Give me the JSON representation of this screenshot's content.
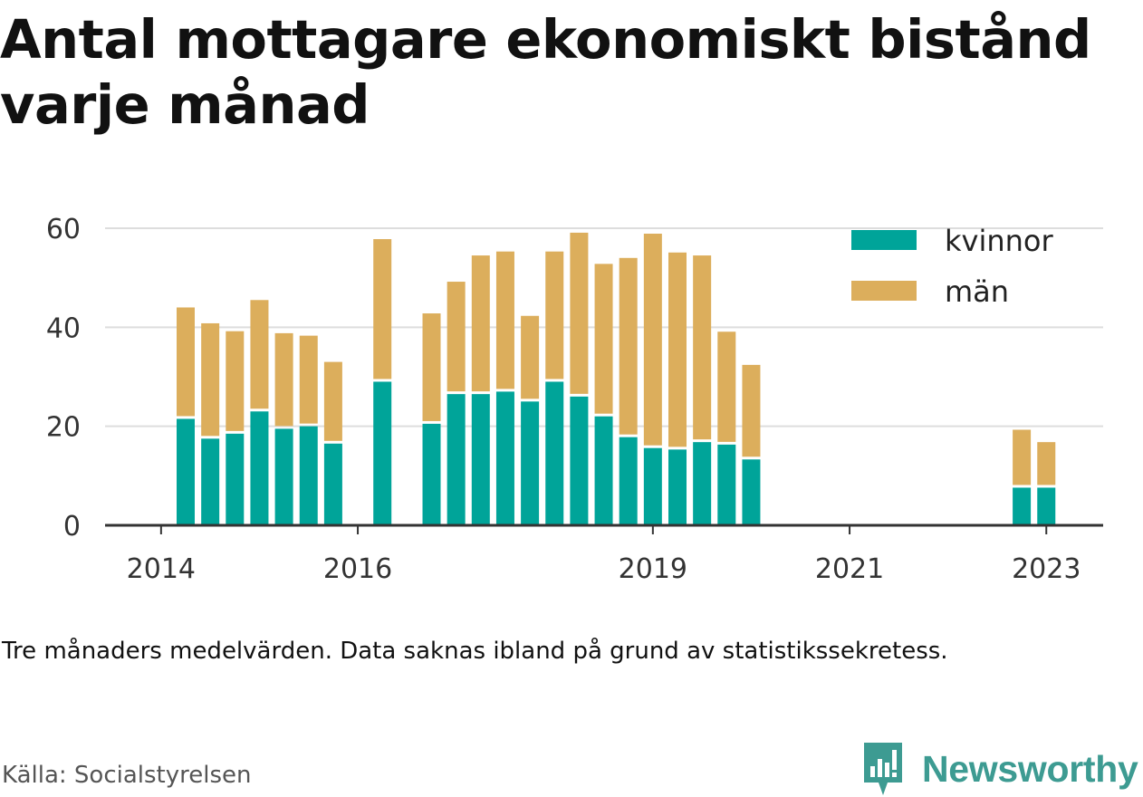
{
  "title": "Antal mottagare ekonomiskt bistånd varje månad",
  "note": "Tre månaders medelvärden. Data saknas ibland på grund av statistikssekretess.",
  "source": "Källa: Socialstyrelsen",
  "brand": "Newsworthy",
  "colors": {
    "kvinnor": "#00a499",
    "man": "#dcae5c",
    "grid": "#dddddd",
    "axis": "#333333",
    "brand": "#3d9b92"
  },
  "chart_data": {
    "type": "bar",
    "stacked": true,
    "x_ticks": [
      "2014",
      "2016",
      "2019",
      "2021",
      "2023"
    ],
    "y_ticks": [
      0,
      20,
      40,
      60
    ],
    "ylim": [
      0,
      63
    ],
    "grid": true,
    "legend_position": "top-right",
    "series": [
      {
        "name": "kvinnor",
        "color": "#00a499"
      },
      {
        "name": "män",
        "color": "#dcae5c"
      }
    ],
    "categories": [
      "2014-Q2",
      "2014-Q3",
      "2014-Q4",
      "2015-Q1",
      "2015-Q2",
      "2015-Q3",
      "2015-Q4",
      "2016-Q1",
      "2016-Q2",
      "2016-Q3",
      "2016-Q4",
      "2017-Q1",
      "2017-Q2",
      "2017-Q3",
      "2017-Q4",
      "2018-Q1",
      "2018-Q2",
      "2018-Q3",
      "2018-Q4",
      "2019-Q1",
      "2019-Q2",
      "2019-Q3",
      "2019-Q4",
      "2020-Q1",
      "2020-Q2",
      "2020-Q3",
      "2020-Q4",
      "2021-Q1",
      "2021-Q2",
      "2021-Q3",
      "2021-Q4",
      "2022-Q1",
      "2022-Q2",
      "2022-Q3",
      "2022-Q4",
      "2023-Q1"
    ],
    "kvinnor": [
      21.5,
      17.5,
      18.5,
      23,
      19.5,
      20,
      16.5,
      null,
      29,
      null,
      20.5,
      26.5,
      26.5,
      27,
      25,
      29,
      26,
      22,
      17.8,
      15.6,
      15.3,
      16.8,
      16.3,
      13.3,
      null,
      null,
      null,
      null,
      null,
      null,
      null,
      null,
      null,
      null,
      7.6,
      7.6
    ],
    "man": [
      22.5,
      23.3,
      20.7,
      22.5,
      19.3,
      18.3,
      16.5,
      null,
      28.8,
      null,
      22.3,
      22.7,
      28,
      28.3,
      17.3,
      26.3,
      33.1,
      30.8,
      36.2,
      43.3,
      39.8,
      37.7,
      22.8,
      19.1,
      null,
      null,
      null,
      null,
      null,
      null,
      null,
      null,
      null,
      null,
      11.7,
      9.2
    ]
  }
}
